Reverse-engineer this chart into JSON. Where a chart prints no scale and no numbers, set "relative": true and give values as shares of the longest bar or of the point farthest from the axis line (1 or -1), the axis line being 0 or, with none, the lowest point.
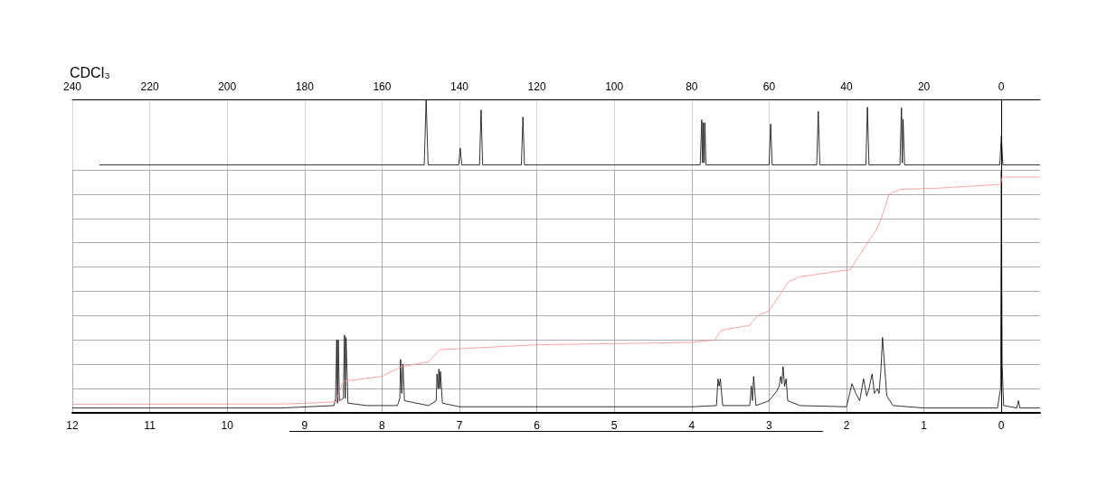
{
  "chart_data": [
    {
      "type": "line",
      "title": "CDCl₃",
      "relative": true,
      "xlim": [
        240,
        -10
      ],
      "xticks": [
        240,
        220,
        200,
        180,
        160,
        140,
        120,
        100,
        80,
        60,
        40,
        20,
        0
      ],
      "tick_labels": "x",
      "grid": "x",
      "marker": "none",
      "series": [
        {
          "color": "#000000",
          "x": [
            233,
            200,
            160,
            149.1,
            148.6,
            148.1,
            140.2,
            139.8,
            139.4,
            134.8,
            134.4,
            134.0,
            124.0,
            123.6,
            123.2,
            100,
            77.8,
            77.4,
            77.2,
            77.0,
            76.8,
            76.6,
            76.3,
            60.0,
            59.6,
            59.2,
            47.7,
            47.3,
            46.9,
            35.0,
            34.6,
            34.2,
            26.2,
            25.8,
            25.6,
            25.4,
            25.0,
            0.4,
            0,
            -0.4,
            -10
          ],
          "values": [
            0.07,
            0.07,
            0.07,
            0.07,
            1,
            0.07,
            0.07,
            0.31,
            0.07,
            0.07,
            0.85,
            0.07,
            0.07,
            0.75,
            0.07,
            0.07,
            0.07,
            0.71,
            0.1,
            0.67,
            0.1,
            0.67,
            0.07,
            0.07,
            0.65,
            0.07,
            0.07,
            0.83,
            0.07,
            0.07,
            0.89,
            0.07,
            0.07,
            0.88,
            0.1,
            0.72,
            0.07,
            0.07,
            0.48,
            0.07,
            0.07
          ]
        }
      ]
    },
    {
      "type": "line",
      "relative": true,
      "xlim": [
        12,
        -0.5
      ],
      "xticks": [
        12,
        11,
        10,
        9,
        8,
        7,
        6,
        5,
        4,
        3,
        2,
        1,
        0
      ],
      "tick_labels": "x",
      "grid": true,
      "marker": "none",
      "series": [
        {
          "color": "#000000",
          "x": [
            12,
            9.3,
            8.62,
            8.6,
            8.585,
            8.575,
            8.565,
            8.55,
            8.5,
            8.485,
            8.475,
            8.465,
            8.44,
            8.2,
            7.8,
            7.77,
            7.76,
            7.745,
            7.73,
            7.71,
            7.4,
            7.3,
            7.29,
            7.275,
            7.265,
            7.255,
            7.245,
            7.22,
            7.0,
            4,
            3.68,
            3.66,
            3.645,
            3.63,
            3.6,
            3.25,
            3.23,
            3.215,
            3.2,
            3.17,
            3.0,
            2.9,
            2.87,
            2.85,
            2.835,
            2.82,
            2.8,
            2.78,
            2.76,
            2.6,
            2.0,
            1.93,
            1.88,
            1.83,
            1.78,
            1.74,
            1.71,
            1.67,
            1.64,
            1.6,
            1.58,
            1.555,
            1.535,
            1.51,
            1.48,
            1.4,
            1.0,
            0.05,
            0.01,
            0,
            -0.01,
            -0.03,
            -0.2,
            -0.22,
            -0.24,
            -0.5
          ],
          "values": [
            0.02,
            0.02,
            0.03,
            0.06,
            0.3,
            0.04,
            0.3,
            0.05,
            0.06,
            0.32,
            0.06,
            0.31,
            0.04,
            0.03,
            0.03,
            0.06,
            0.22,
            0.08,
            0.2,
            0.05,
            0.03,
            0.05,
            0.16,
            0.1,
            0.18,
            0.1,
            0.17,
            0.04,
            0.025,
            0.025,
            0.03,
            0.14,
            0.11,
            0.14,
            0.03,
            0.03,
            0.11,
            0.05,
            0.15,
            0.03,
            0.05,
            0.09,
            0.11,
            0.15,
            0.12,
            0.19,
            0.11,
            0.14,
            0.05,
            0.03,
            0.025,
            0.12,
            0.08,
            0.05,
            0.14,
            0.07,
            0.1,
            0.16,
            0.08,
            0.1,
            0.08,
            0.18,
            0.31,
            0.2,
            0.07,
            0.03,
            0.02,
            0.02,
            0.1,
            1,
            0.2,
            0.03,
            0.02,
            0.05,
            0.02,
            0.02
          ]
        },
        {
          "color": "#ff8c8c",
          "x": [
            12,
            9.2,
            8.6,
            8.5,
            8.0,
            7.75,
            7.4,
            7.25,
            6.0,
            4.0,
            3.7,
            3.62,
            3.25,
            3.15,
            3.0,
            2.75,
            2.6,
            1.95,
            1.85,
            1.75,
            1.62,
            1.55,
            1.45,
            1.3,
            0.8,
            0.01,
            -0.01,
            -0.5
          ],
          "values": [
            0.035,
            0.037,
            0.045,
            0.13,
            0.15,
            0.19,
            0.21,
            0.26,
            0.28,
            0.29,
            0.3,
            0.34,
            0.36,
            0.4,
            0.42,
            0.54,
            0.56,
            0.59,
            0.64,
            0.69,
            0.75,
            0.8,
            0.9,
            0.92,
            0.925,
            0.94,
            0.97,
            0.97
          ]
        }
      ]
    }
  ]
}
